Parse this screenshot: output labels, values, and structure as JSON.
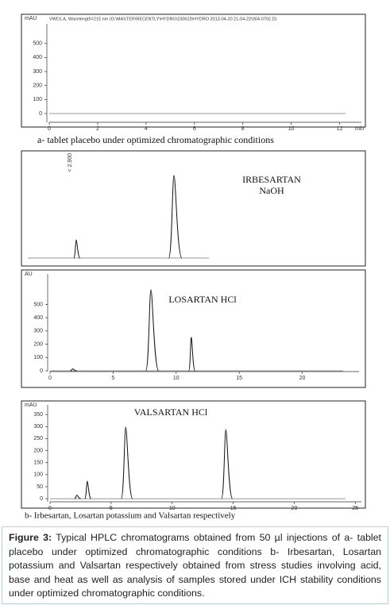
{
  "figure": {
    "panels": [
      {
        "header": "VWD1 A, Wavelength=215 nm (G:\\MASTER\\RECENTLY\\HYDRO\\230623\\HYDRO 2013-04-20 21-04-22\\004-0702.D)",
        "ylabel": "mAU",
        "xlabel": "min",
        "xlim": [
          0,
          12.9
        ],
        "ylim": [
          -85,
          640
        ],
        "xticks": [
          0,
          2,
          4,
          6,
          8,
          10,
          12
        ],
        "yticks": [
          0,
          100,
          200,
          300,
          400,
          500
        ],
        "peaks": []
      },
      {
        "annotation": "< 2.900",
        "labels": [
          "IRBESARTAN",
          "NaOH"
        ],
        "xlim": [
          0,
          20
        ],
        "ylim": [
          0,
          120
        ],
        "peaks": [
          {
            "time": 2.94,
            "height": 22
          },
          {
            "time": 8.87,
            "height": 100
          }
        ]
      },
      {
        "ylabel": "AU",
        "labels": [
          "LOSARTAN  HCl"
        ],
        "xlim": [
          0,
          24.5
        ],
        "ylim": [
          -30,
          730
        ],
        "xticks": [
          0,
          5,
          10,
          15,
          20
        ],
        "yticks": [
          0,
          100,
          200,
          300,
          400,
          500
        ],
        "peaks": [
          {
            "time": 1.8,
            "height": 15
          },
          {
            "time": 8.0,
            "height": 610
          },
          {
            "time": 11.2,
            "height": 253
          }
        ]
      },
      {
        "ylabel": "mAU",
        "labels": [
          "VALSARTAN HCl"
        ],
        "xlim": [
          0,
          25.5
        ],
        "ylim": [
          -26,
          390
        ],
        "xticks": [
          0,
          5,
          10,
          15,
          20,
          25
        ],
        "yticks": [
          0,
          50,
          100,
          150,
          200,
          250,
          300,
          350
        ],
        "peaks": [
          {
            "time": 2.2,
            "height": 15
          },
          {
            "time": 3.05,
            "height": 73
          },
          {
            "time": 6.2,
            "height": 297
          },
          {
            "time": 14.4,
            "height": 287
          }
        ]
      }
    ],
    "captions": [
      "a-   tablet placebo under optimized chromatographic conditions",
      "b- Irbesartan, Losartan potassium and Valsartan respectively"
    ],
    "caption": {
      "label": "Figure 3:",
      "text": "Typical HPLC chromatograms obtained from 50 µl injections of a- tablet placebo under optimized chromatographic conditions b- Irbesartan, Losartan potassium and Valsartan respectively obtained from stress studies involving acid, base and heat as well as analysis of samples stored under ICH stability conditions under optimized chromatographic conditions."
    }
  }
}
